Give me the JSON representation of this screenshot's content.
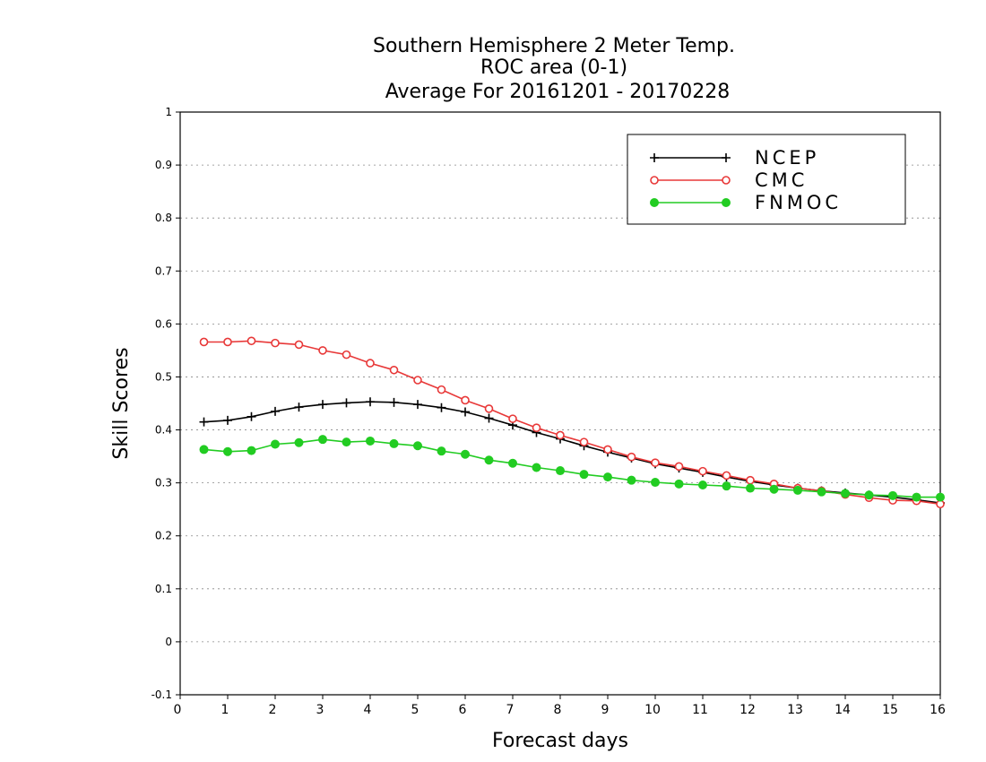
{
  "chart_data": {
    "type": "line",
    "title": [
      "Southern Hemisphere 2 Meter Temp.",
      "ROC area (0-1)",
      "Average For 20161201 - 20170228"
    ],
    "xlabel": "Forecast days",
    "ylabel": "Skill Scores",
    "xlim": [
      0,
      16
    ],
    "ylim": [
      -0.1,
      1
    ],
    "xticks": [
      "0",
      "1",
      "2",
      "3",
      "4",
      "5",
      "6",
      "7",
      "8",
      "9",
      "10",
      "11",
      "12",
      "13",
      "14",
      "15",
      "16"
    ],
    "yticks": [
      "-0.1",
      "0",
      "0.1",
      "0.2",
      "0.3",
      "0.4",
      "0.5",
      "0.6",
      "0.7",
      "0.8",
      "0.9",
      "1"
    ],
    "grid": true,
    "legend_position": "top-right",
    "x": [
      0.5,
      1,
      1.5,
      2,
      2.5,
      3,
      3.5,
      4,
      4.5,
      5,
      5.5,
      6,
      6.5,
      7,
      7.5,
      8,
      8.5,
      9,
      9.5,
      10,
      10.5,
      11,
      11.5,
      12,
      12.5,
      13,
      13.5,
      14,
      14.5,
      15,
      15.5,
      16
    ],
    "series": [
      {
        "name": "NCEP",
        "color": "#000000",
        "marker": "plus",
        "values": [
          0.415,
          0.418,
          0.425,
          0.435,
          0.443,
          0.448,
          0.451,
          0.453,
          0.452,
          0.448,
          0.442,
          0.434,
          0.422,
          0.409,
          0.395,
          0.383,
          0.37,
          0.358,
          0.347,
          0.336,
          0.328,
          0.32,
          0.311,
          0.303,
          0.296,
          0.29,
          0.285,
          0.281,
          0.277,
          0.273,
          0.268,
          0.262
        ]
      },
      {
        "name": "CMC",
        "color": "#e83838",
        "marker": "open-circle",
        "values": [
          0.566,
          0.566,
          0.568,
          0.564,
          0.561,
          0.55,
          0.542,
          0.526,
          0.513,
          0.494,
          0.476,
          0.456,
          0.44,
          0.421,
          0.404,
          0.39,
          0.377,
          0.363,
          0.349,
          0.338,
          0.331,
          0.322,
          0.314,
          0.305,
          0.298,
          0.29,
          0.285,
          0.278,
          0.272,
          0.267,
          0.266,
          0.26
        ]
      },
      {
        "name": "FNMOC",
        "color": "#22cc22",
        "marker": "filled-circle",
        "values": [
          0.363,
          0.359,
          0.361,
          0.373,
          0.376,
          0.382,
          0.377,
          0.379,
          0.374,
          0.37,
          0.36,
          0.354,
          0.343,
          0.337,
          0.329,
          0.323,
          0.316,
          0.311,
          0.305,
          0.301,
          0.298,
          0.296,
          0.294,
          0.29,
          0.288,
          0.286,
          0.283,
          0.28,
          0.277,
          0.276,
          0.273,
          0.273
        ]
      }
    ]
  }
}
